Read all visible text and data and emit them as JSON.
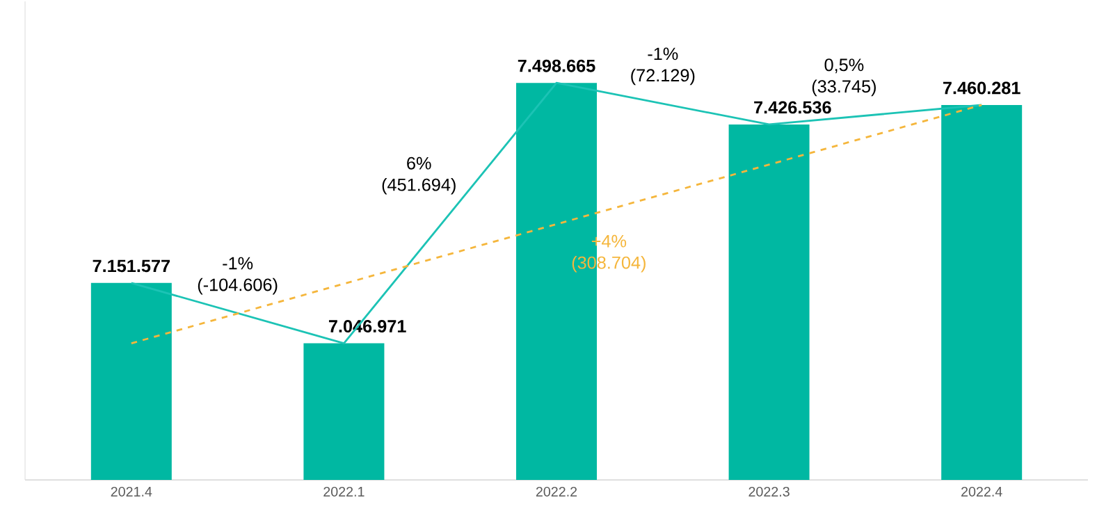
{
  "chart_data": {
    "type": "bar",
    "categories": [
      "2021.4",
      "2022.1",
      "2022.2",
      "2022.3",
      "2022.4"
    ],
    "ylim": [
      6810000,
      7640000
    ],
    "tick_labels": "x",
    "series": [
      {
        "color": "#00b8a2",
        "values": [
          7151577,
          7046971,
          7498665,
          7426536,
          7460281
        ],
        "value_labels": [
          "7.151.577",
          "7.046.971",
          "7.498.665",
          "7.426.536",
          "7.460.281"
        ]
      },
      {
        "type": "line",
        "color": "#1cc3b5",
        "values": [
          7151577,
          7046971,
          7498665,
          7426536,
          7460281
        ],
        "marker": "none",
        "line_style": "solid"
      },
      {
        "type": "line",
        "color": "#f5b63c",
        "values": [
          7046971,
          null,
          null,
          null,
          7460281
        ],
        "marker": "none",
        "line_style": "dashed"
      }
    ],
    "annotations": [
      "-1%",
      "(-104.606)",
      "6%",
      "(451.694)",
      "-1%",
      "(72.129)",
      "0,5%",
      "(33.745)",
      "+4%",
      "(308.704)"
    ]
  }
}
